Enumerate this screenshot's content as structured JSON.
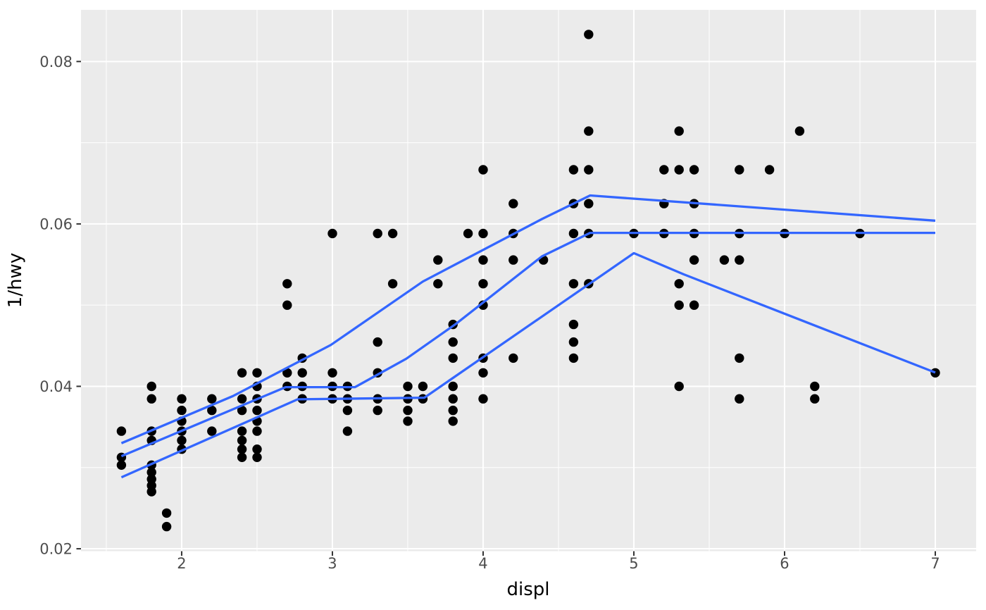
{
  "chart_data": {
    "type": "scatter",
    "title": "",
    "xlabel": "displ",
    "ylabel": "1/hwy",
    "xlim": [
      1.332,
      7.271
    ],
    "ylim": [
      0.0197,
      0.08636
    ],
    "x_major_ticks": [
      2,
      3,
      4,
      5,
      6,
      7
    ],
    "x_major_tick_labels": [
      "2",
      "3",
      "4",
      "5",
      "6",
      "7"
    ],
    "x_minor_ticks": [
      1.5,
      2.5,
      3.5,
      4.5,
      5.5,
      6.5
    ],
    "y_major_ticks": [
      0.02,
      0.04,
      0.06,
      0.08
    ],
    "y_major_tick_labels": [
      "0.02",
      "0.04",
      "0.06",
      "0.08"
    ],
    "y_minor_ticks": [
      0.03,
      0.05,
      0.07
    ],
    "grid": "major and minor white gridlines on grey panel",
    "legend_position": "none",
    "y_encoding": "y value plotted is 1/hwy",
    "points": [
      {
        "displ": 1.6,
        "hwy": [
          29,
          32,
          33
        ]
      },
      {
        "displ": 1.8,
        "hwy": [
          25,
          26,
          29,
          30,
          33,
          34,
          35,
          36,
          37
        ]
      },
      {
        "displ": 1.9,
        "hwy": [
          41,
          44
        ]
      },
      {
        "displ": 2.0,
        "hwy": [
          26,
          27,
          28,
          29,
          30,
          31
        ]
      },
      {
        "displ": 2.2,
        "hwy": [
          26,
          27,
          29
        ]
      },
      {
        "displ": 2.4,
        "hwy": [
          24,
          26,
          27,
          29,
          30,
          31,
          32
        ]
      },
      {
        "displ": 2.5,
        "hwy": [
          24,
          25,
          26,
          27,
          28,
          29,
          31,
          32
        ]
      },
      {
        "displ": 2.7,
        "hwy": [
          19,
          20,
          24,
          25
        ]
      },
      {
        "displ": 2.8,
        "hwy": [
          23,
          24,
          25,
          26
        ]
      },
      {
        "displ": 3.0,
        "hwy": [
          17,
          24,
          25,
          26
        ]
      },
      {
        "displ": 3.1,
        "hwy": [
          25,
          26,
          27,
          29
        ]
      },
      {
        "displ": 3.3,
        "hwy": [
          17,
          22,
          24,
          26,
          27
        ]
      },
      {
        "displ": 3.4,
        "hwy": [
          17,
          19
        ]
      },
      {
        "displ": 3.5,
        "hwy": [
          25,
          26,
          27,
          28
        ]
      },
      {
        "displ": 3.6,
        "hwy": [
          25,
          26
        ]
      },
      {
        "displ": 3.7,
        "hwy": [
          18,
          19
        ]
      },
      {
        "displ": 3.8,
        "hwy": [
          21,
          22,
          23,
          25,
          26,
          27,
          28
        ]
      },
      {
        "displ": 3.9,
        "hwy": [
          17
        ]
      },
      {
        "displ": 4.0,
        "hwy": [
          15,
          17,
          18,
          19,
          20,
          23,
          24,
          26
        ]
      },
      {
        "displ": 4.2,
        "hwy": [
          16,
          17,
          18,
          23
        ]
      },
      {
        "displ": 4.4,
        "hwy": [
          18
        ]
      },
      {
        "displ": 4.6,
        "hwy": [
          15,
          16,
          17,
          19,
          21,
          22,
          23
        ]
      },
      {
        "displ": 4.7,
        "hwy": [
          12,
          14,
          15,
          16,
          17,
          19
        ]
      },
      {
        "displ": 5.0,
        "hwy": [
          17
        ]
      },
      {
        "displ": 5.2,
        "hwy": [
          15,
          16,
          17
        ]
      },
      {
        "displ": 5.3,
        "hwy": [
          14,
          15,
          19,
          20,
          25
        ]
      },
      {
        "displ": 5.4,
        "hwy": [
          15,
          16,
          17,
          18,
          20
        ]
      },
      {
        "displ": 5.6,
        "hwy": [
          18
        ]
      },
      {
        "displ": 5.7,
        "hwy": [
          15,
          17,
          18,
          23,
          26
        ]
      },
      {
        "displ": 5.9,
        "hwy": [
          15
        ]
      },
      {
        "displ": 6.0,
        "hwy": [
          17
        ]
      },
      {
        "displ": 6.1,
        "hwy": [
          14
        ]
      },
      {
        "displ": 6.2,
        "hwy": [
          25,
          26
        ]
      },
      {
        "displ": 6.5,
        "hwy": [
          17
        ]
      },
      {
        "displ": 7.0,
        "hwy": [
          24
        ]
      }
    ],
    "quantile_lines": [
      {
        "name": "q75-upper",
        "xy": [
          [
            1.6,
            0.033
          ],
          [
            2.34,
            0.0388
          ],
          [
            2.99,
            0.0451
          ],
          [
            3.6,
            0.0529
          ],
          [
            4.39,
            0.0606
          ],
          [
            4.71,
            0.0635
          ],
          [
            7.0,
            0.0604
          ]
        ]
      },
      {
        "name": "q50-median",
        "xy": [
          [
            1.6,
            0.0314
          ],
          [
            2.69,
            0.0399
          ],
          [
            3.15,
            0.0399
          ],
          [
            3.49,
            0.0434
          ],
          [
            3.82,
            0.0477
          ],
          [
            4.39,
            0.056
          ],
          [
            4.71,
            0.0589
          ],
          [
            7.0,
            0.0589
          ]
        ]
      },
      {
        "name": "q25-lower",
        "xy": [
          [
            1.6,
            0.0288
          ],
          [
            2.77,
            0.0384
          ],
          [
            3.61,
            0.0386
          ],
          [
            5.0,
            0.0564
          ],
          [
            5.33,
            0.0538
          ],
          [
            7.0,
            0.0417
          ]
        ]
      }
    ],
    "style": {
      "panel_bg": "#EBEBEB",
      "grid_color": "#FFFFFF",
      "point_color": "#000000",
      "line_color": "#3366FF",
      "tick_text_color": "#4D4D4D",
      "axis_title_color": "#000000",
      "tick_mark_color": "#333333",
      "point_radius": 6.7,
      "line_width": 3.3
    }
  }
}
